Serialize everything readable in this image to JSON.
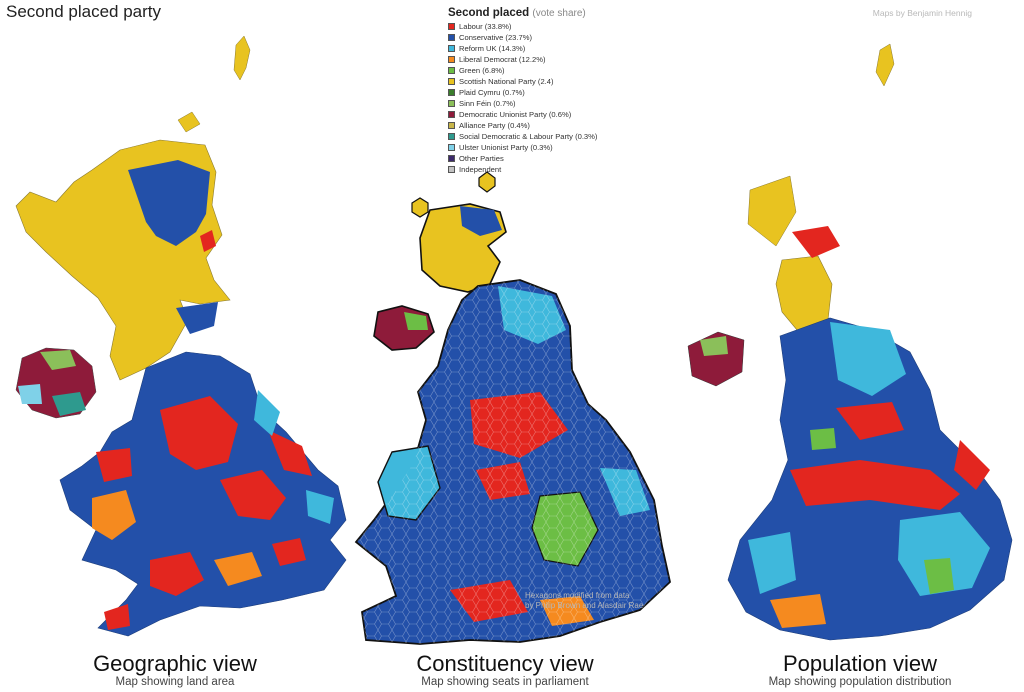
{
  "page_title": "Second placed party",
  "credit": "Maps by Benjamin Hennig",
  "legend": {
    "title": "Second placed",
    "subtitle": "(vote share)",
    "items": [
      {
        "label": "Labour (33.8%)",
        "color": "#e3261f"
      },
      {
        "label": "Conservative (23.7%)",
        "color": "#2350a9"
      },
      {
        "label": "Reform UK (14.3%)",
        "color": "#3fb8dc"
      },
      {
        "label": "Liberal Democrat (12.2%)",
        "color": "#f58a1f"
      },
      {
        "label": "Green (6.8%)",
        "color": "#6cbe45"
      },
      {
        "label": "Scottish National Party (2.4)",
        "color": "#e8c320"
      },
      {
        "label": "Plaid Cymru (0.7%)",
        "color": "#3a7d2c"
      },
      {
        "label": "Sinn Féin (0.7%)",
        "color": "#8bbf5a"
      },
      {
        "label": "Democratic Unionist Party (0.6%)",
        "color": "#8e1b3a"
      },
      {
        "label": "Alliance Party (0.4%)",
        "color": "#c8b64a"
      },
      {
        "label": "Social Democratic & Labour Party (0.3%)",
        "color": "#2e9a8e"
      },
      {
        "label": "Ulster Unionist Party (0.3%)",
        "color": "#7fd1e8"
      },
      {
        "label": "Other Parties",
        "color": "#3d2a6b"
      },
      {
        "label": "Independent",
        "color": "#c2c2c2"
      }
    ]
  },
  "views": {
    "geographic": {
      "title": "Geographic view",
      "subtitle": "Map showing land area"
    },
    "constituency": {
      "title": "Constituency view",
      "subtitle": "Map showing seats in parliament"
    },
    "population": {
      "title": "Population view",
      "subtitle": "Map showing population distribution"
    }
  },
  "hex_credit": {
    "line1": "Hexagons modified from data",
    "line2": "by Philip Brown and Alasdair Rae"
  }
}
